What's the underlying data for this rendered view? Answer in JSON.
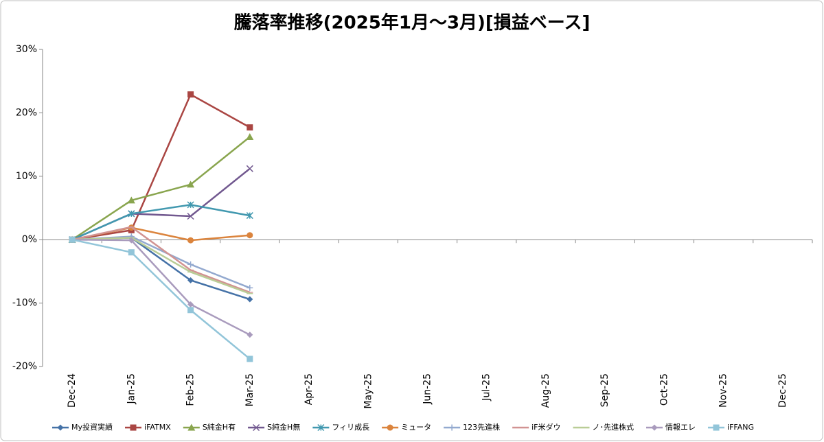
{
  "chart_data": {
    "type": "line",
    "title": "騰落率推移(2025年1月～3月)[損益ベース]",
    "categories": [
      "Dec-24",
      "Jan-25",
      "Feb-25",
      "Mar-25",
      "Apr-25",
      "May-25",
      "Jun-25",
      "Jul-25",
      "Aug-25",
      "Sep-25",
      "Oct-25",
      "Nov-25",
      "Dec-25"
    ],
    "ylim": [
      -20,
      30
    ],
    "yticks": [
      {
        "value": -20,
        "label": "-20%"
      },
      {
        "value": -10,
        "label": "-10%"
      },
      {
        "value": 0,
        "label": "0%"
      },
      {
        "value": 10,
        "label": "10%"
      },
      {
        "value": 20,
        "label": "20%"
      },
      {
        "value": 30,
        "label": "30%"
      }
    ],
    "grid": false,
    "legend": "bottom",
    "series": [
      {
        "name": "My投資実績",
        "color": "#4572a7",
        "marker": "diamond",
        "values": [
          0,
          0.3,
          -6.4,
          -9.4,
          null,
          null,
          null,
          null,
          null,
          null,
          null,
          null,
          null
        ]
      },
      {
        "name": "iFATMX",
        "color": "#aa4643",
        "marker": "square",
        "values": [
          0,
          1.5,
          22.9,
          17.7,
          null,
          null,
          null,
          null,
          null,
          null,
          null,
          null,
          null
        ]
      },
      {
        "name": "S純金H有",
        "color": "#89a54e",
        "marker": "triangle",
        "values": [
          0,
          6.2,
          8.7,
          16.2,
          null,
          null,
          null,
          null,
          null,
          null,
          null,
          null,
          null
        ]
      },
      {
        "name": "S純金H無",
        "color": "#71588f",
        "marker": "x",
        "values": [
          0,
          4.1,
          3.7,
          11.2,
          null,
          null,
          null,
          null,
          null,
          null,
          null,
          null,
          null
        ]
      },
      {
        "name": "フィリ成長",
        "color": "#4198af",
        "marker": "star",
        "values": [
          0,
          4.1,
          5.5,
          3.8,
          null,
          null,
          null,
          null,
          null,
          null,
          null,
          null,
          null
        ]
      },
      {
        "name": "ミュータ",
        "color": "#db843d",
        "marker": "circle",
        "values": [
          0,
          1.9,
          -0.1,
          0.7,
          null,
          null,
          null,
          null,
          null,
          null,
          null,
          null,
          null
        ]
      },
      {
        "name": "123先進株",
        "color": "#93a9cf",
        "marker": "plus",
        "values": [
          0,
          0.5,
          -3.9,
          -7.6,
          null,
          null,
          null,
          null,
          null,
          null,
          null,
          null,
          null
        ]
      },
      {
        "name": "iF米ダウ",
        "color": "#d19392",
        "marker": "dash",
        "values": [
          0,
          2.0,
          -4.8,
          -8.3,
          null,
          null,
          null,
          null,
          null,
          null,
          null,
          null,
          null
        ]
      },
      {
        "name": "ノ･先進株式",
        "color": "#b9cd96",
        "marker": "dash",
        "values": [
          0,
          0.3,
          -5.1,
          -8.5,
          null,
          null,
          null,
          null,
          null,
          null,
          null,
          null,
          null
        ]
      },
      {
        "name": "情報エレ",
        "color": "#a99bbd",
        "marker": "diamond",
        "values": [
          0,
          -0.1,
          -10.2,
          -15.0,
          null,
          null,
          null,
          null,
          null,
          null,
          null,
          null,
          null
        ]
      },
      {
        "name": "iFFANG",
        "color": "#92c5d9",
        "marker": "square",
        "values": [
          0,
          -2.0,
          -11.1,
          -18.8,
          null,
          null,
          null,
          null,
          null,
          null,
          null,
          null,
          null
        ]
      }
    ]
  }
}
